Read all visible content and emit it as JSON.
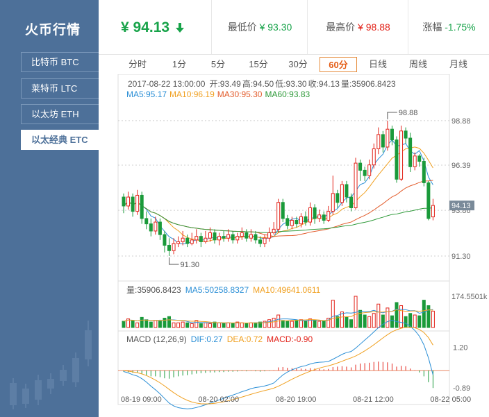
{
  "sidebar": {
    "title": "火币行情",
    "items": [
      {
        "label": "比特币 BTC"
      },
      {
        "label": "莱特币 LTC"
      },
      {
        "label": "以太坊 ETH"
      },
      {
        "label": "以太经典 ETC"
      }
    ],
    "active_index": 3
  },
  "header": {
    "price": "¥ 94.13",
    "trend": "down",
    "low_label": "最低价",
    "low_value": "¥ 93.30",
    "high_label": "最高价",
    "high_value": "¥ 98.88",
    "change_label": "涨幅",
    "change_value": "-1.75%"
  },
  "tabs": [
    "分时",
    "1分",
    "5分",
    "15分",
    "30分",
    "60分",
    "日线",
    "周线",
    "月线"
  ],
  "active_tab": "60分",
  "ohlc_info": {
    "datetime": "2017-08-22 13:00:00",
    "open": "开:93.49",
    "high": "高:94.50",
    "low": "低:93.30",
    "close": "收:94.13",
    "volume": "量:35906.8423"
  },
  "ma_info": {
    "ma5": "MA5:95.17",
    "ma10": "MA10:96.19",
    "ma30": "MA30:95.30",
    "ma60": "MA60:93.83"
  },
  "vol_info": {
    "vol": "量:35906.8423",
    "ma5": "MA5:50258.8327",
    "ma10": "MA10:49641.0611"
  },
  "macd_info": {
    "name": "MACD (12,26,9)",
    "dif": "DIF:0.27",
    "dea": "DEA:0.72",
    "macd": "MACD:-0.90"
  },
  "chart_data": {
    "type": "candlestick",
    "price_axis": {
      "ticks": [
        98.88,
        96.39,
        93.86,
        91.3
      ],
      "current": 94.13,
      "max_marker": 98.88,
      "min_marker": 91.3
    },
    "volume_axis": {
      "max_label": "174.5501k"
    },
    "macd_axis": {
      "ticks": [
        1.2,
        -0.89
      ]
    },
    "x_labels": [
      "08-19 09:00",
      "08-20 02:00",
      "08-20 19:00",
      "08-21 12:00",
      "08-22 05:00"
    ],
    "x_label_index": [
      0,
      17,
      34,
      51,
      68
    ],
    "colors": {
      "up": "#e2231a",
      "down": "#1a9a3a",
      "ma5": "#2b8fd6",
      "ma10": "#f0a020",
      "ma30": "#e25b2b",
      "ma60": "#2f9a3a",
      "dif": "#2b8fd6",
      "dea": "#f0a020"
    },
    "candles": [
      [
        94.6,
        94.1,
        94.8,
        93.7
      ],
      [
        94.1,
        94.6,
        94.9,
        93.9
      ],
      [
        94.6,
        93.8,
        94.8,
        93.5
      ],
      [
        93.8,
        94.7,
        95.0,
        93.6
      ],
      [
        94.7,
        93.4,
        94.9,
        93.1
      ],
      [
        93.4,
        93.1,
        93.8,
        92.8
      ],
      [
        93.1,
        92.7,
        93.4,
        92.4
      ],
      [
        92.7,
        93.2,
        93.5,
        92.5
      ],
      [
        93.2,
        92.5,
        93.4,
        92.2
      ],
      [
        92.5,
        91.9,
        92.7,
        91.5
      ],
      [
        91.9,
        91.6,
        92.3,
        91.3
      ],
      [
        91.6,
        92.0,
        92.3,
        91.4
      ],
      [
        92.0,
        92.1,
        92.4,
        91.8
      ],
      [
        92.1,
        92.3,
        92.7,
        91.9
      ],
      [
        92.3,
        92.0,
        92.5,
        91.8
      ],
      [
        92.0,
        92.2,
        92.6,
        91.9
      ],
      [
        92.2,
        92.4,
        92.8,
        92.0
      ],
      [
        92.4,
        92.1,
        92.6,
        91.8
      ],
      [
        92.1,
        92.3,
        92.7,
        92.0
      ],
      [
        92.3,
        92.6,
        92.9,
        92.1
      ],
      [
        92.6,
        92.2,
        92.8,
        92.0
      ],
      [
        92.2,
        92.4,
        92.6,
        91.9
      ],
      [
        92.4,
        92.3,
        92.7,
        92.1
      ],
      [
        92.3,
        92.5,
        92.8,
        92.1
      ],
      [
        92.5,
        92.2,
        92.7,
        92.0
      ],
      [
        92.2,
        92.4,
        92.6,
        92.0
      ],
      [
        92.4,
        92.6,
        92.9,
        92.2
      ],
      [
        92.6,
        92.3,
        92.8,
        92.1
      ],
      [
        92.3,
        92.5,
        92.8,
        92.1
      ],
      [
        92.5,
        92.2,
        92.7,
        92.0
      ],
      [
        92.2,
        92.0,
        92.4,
        91.8
      ],
      [
        92.0,
        92.3,
        92.5,
        91.8
      ],
      [
        92.3,
        92.6,
        92.9,
        92.1
      ],
      [
        92.6,
        92.8,
        93.2,
        92.5
      ],
      [
        92.8,
        94.3,
        94.5,
        92.6
      ],
      [
        94.3,
        93.4,
        94.5,
        93.2
      ],
      [
        93.4,
        93.0,
        93.6,
        92.8
      ],
      [
        93.0,
        93.3,
        93.5,
        92.8
      ],
      [
        93.3,
        93.1,
        93.5,
        92.9
      ],
      [
        93.1,
        93.5,
        93.7,
        92.9
      ],
      [
        93.5,
        93.2,
        93.8,
        93.0
      ],
      [
        93.2,
        94.0,
        94.3,
        93.0
      ],
      [
        94.0,
        93.4,
        94.2,
        93.1
      ],
      [
        93.4,
        93.6,
        93.9,
        93.2
      ],
      [
        93.6,
        93.3,
        93.8,
        93.1
      ],
      [
        93.3,
        93.8,
        94.1,
        93.2
      ],
      [
        93.8,
        94.8,
        95.8,
        93.6
      ],
      [
        94.8,
        94.3,
        95.0,
        94.0
      ],
      [
        94.3,
        95.3,
        95.5,
        94.1
      ],
      [
        95.3,
        94.6,
        95.5,
        94.3
      ],
      [
        94.6,
        94.0,
        94.8,
        93.8
      ],
      [
        94.0,
        96.5,
        96.8,
        93.9
      ],
      [
        96.5,
        96.1,
        96.7,
        95.5
      ],
      [
        96.1,
        95.8,
        96.3,
        95.5
      ],
      [
        95.8,
        96.4,
        96.7,
        95.6
      ],
      [
        96.4,
        97.3,
        97.6,
        96.2
      ],
      [
        97.3,
        98.1,
        98.5,
        97.0
      ],
      [
        98.1,
        97.4,
        98.3,
        97.1
      ],
      [
        97.4,
        98.4,
        98.88,
        97.2
      ],
      [
        98.4,
        97.8,
        98.6,
        97.5
      ],
      [
        97.8,
        95.6,
        98.0,
        95.4
      ],
      [
        95.6,
        98.3,
        98.6,
        95.5
      ],
      [
        98.3,
        97.9,
        98.5,
        97.6
      ],
      [
        97.9,
        96.3,
        98.2,
        96.0
      ],
      [
        96.3,
        96.9,
        97.1,
        96.1
      ],
      [
        96.9,
        96.6,
        97.0,
        96.3
      ],
      [
        96.6,
        95.4,
        96.8,
        95.2
      ],
      [
        95.4,
        93.4,
        95.5,
        93.3
      ],
      [
        93.49,
        94.13,
        94.5,
        93.3
      ]
    ],
    "volumes": [
      8,
      11,
      9,
      6,
      13,
      10,
      7,
      9,
      8,
      12,
      14,
      6,
      6,
      7,
      6,
      5,
      9,
      5,
      6,
      5,
      7,
      6,
      5,
      6,
      5,
      7,
      6,
      5,
      6,
      6,
      7,
      8,
      10,
      12,
      16,
      9,
      8,
      8,
      9,
      10,
      8,
      11,
      9,
      8,
      8,
      12,
      35,
      14,
      20,
      13,
      10,
      40,
      22,
      16,
      14,
      18,
      30,
      16,
      25,
      15,
      32,
      28,
      14,
      18,
      16,
      15,
      35,
      28,
      21
    ],
    "macd_hist": [
      -0.06,
      -0.08,
      -0.12,
      -0.1,
      -0.18,
      -0.24,
      -0.3,
      -0.3,
      -0.34,
      -0.4,
      -0.42,
      -0.35,
      -0.3,
      -0.26,
      -0.24,
      -0.2,
      -0.16,
      -0.14,
      -0.12,
      -0.1,
      -0.1,
      -0.08,
      -0.08,
      -0.06,
      -0.06,
      -0.05,
      -0.03,
      -0.04,
      -0.02,
      -0.04,
      -0.06,
      -0.04,
      -0.02,
      0.02,
      0.16,
      0.18,
      0.14,
      0.12,
      0.1,
      0.1,
      0.08,
      0.12,
      0.1,
      0.08,
      0.06,
      0.08,
      0.18,
      0.2,
      0.22,
      0.2,
      0.16,
      0.3,
      0.36,
      0.38,
      0.4,
      0.44,
      0.46,
      0.44,
      0.42,
      0.36,
      0.2,
      0.24,
      0.22,
      0.1,
      0.02,
      -0.1,
      -0.3,
      -0.6,
      -0.9
    ]
  }
}
